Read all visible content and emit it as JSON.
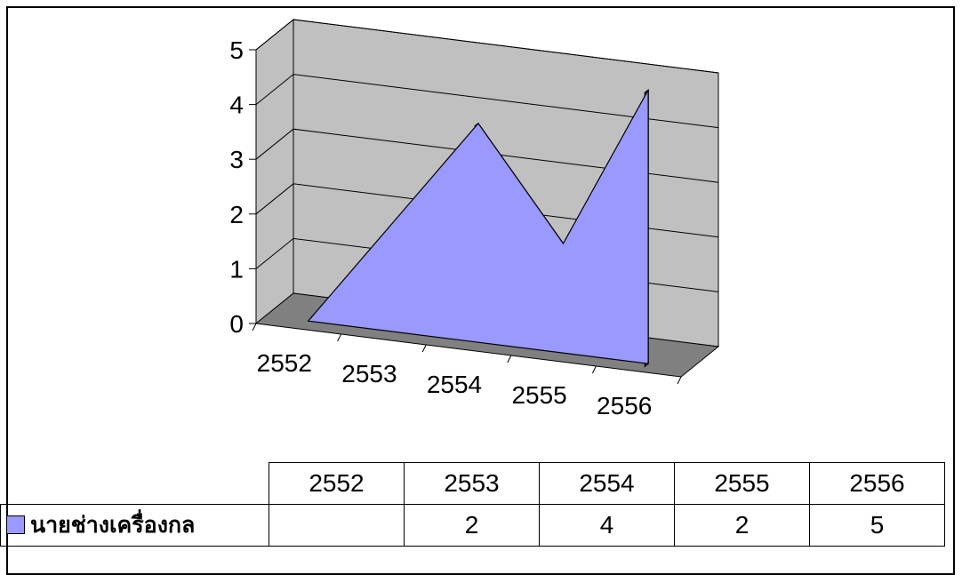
{
  "chart_data": {
    "type": "area",
    "three_d": true,
    "categories": [
      "2552",
      "2553",
      "2554",
      "2555",
      "2556"
    ],
    "series": [
      {
        "name": "นายช่างเครื่องกล",
        "values": [
          0,
          2,
          4,
          2,
          5
        ]
      }
    ],
    "ylim": [
      0,
      5
    ],
    "y_ticks": [
      "0",
      "1",
      "2",
      "3",
      "4",
      "5"
    ],
    "grid": true,
    "data_table": true,
    "colors": {
      "series_front": "#9999ff",
      "series_side": "#6f6fd0",
      "series_side_dark": "#45458f",
      "wall": "#c0c0c0",
      "floor": "#808080"
    }
  },
  "table": {
    "header": [
      "",
      "2552",
      "2553",
      "2554",
      "2555",
      "2556"
    ],
    "row_label": "นายช่างเครื่องกล",
    "row_values": [
      "",
      "2",
      "4",
      "2",
      "5"
    ]
  }
}
